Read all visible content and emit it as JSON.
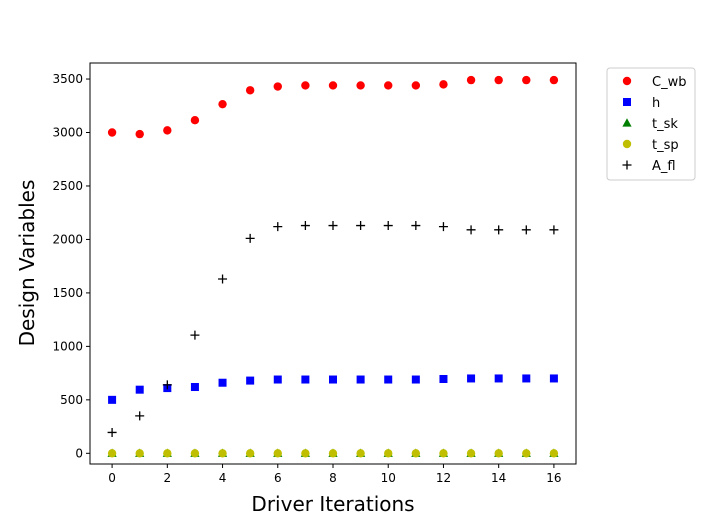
{
  "chart_data": {
    "type": "scatter",
    "title": "",
    "xlabel": "Driver Iterations",
    "ylabel": "Design Variables",
    "xlim": [
      -0.8,
      16.8
    ],
    "ylim": [
      -100,
      3650
    ],
    "xticks": [
      0,
      2,
      4,
      6,
      8,
      10,
      12,
      14,
      16
    ],
    "yticks": [
      0,
      500,
      1000,
      1500,
      2000,
      2500,
      3000,
      3500
    ],
    "grid": false,
    "legend_position": "outside-top-right",
    "x": [
      0,
      1,
      2,
      3,
      4,
      5,
      6,
      7,
      8,
      9,
      10,
      11,
      12,
      13,
      14,
      15,
      16
    ],
    "series": [
      {
        "name": "C_wb",
        "marker": "circle",
        "color": "#ff0000",
        "values": [
          3000,
          2985,
          3020,
          3115,
          3265,
          3395,
          3430,
          3440,
          3440,
          3440,
          3440,
          3440,
          3450,
          3490,
          3490,
          3490,
          3490
        ]
      },
      {
        "name": "h",
        "marker": "square",
        "color": "#0000ff",
        "values": [
          500,
          595,
          610,
          620,
          660,
          680,
          690,
          690,
          690,
          690,
          690,
          690,
          695,
          700,
          700,
          700,
          700
        ]
      },
      {
        "name": "t_sk",
        "marker": "triangle",
        "color": "#007f00",
        "values": [
          0,
          0,
          0,
          0,
          0,
          0,
          0,
          0,
          0,
          0,
          0,
          0,
          0,
          0,
          0,
          0,
          0
        ]
      },
      {
        "name": "t_sp",
        "marker": "circle",
        "color": "#bfbf00",
        "values": [
          0,
          0,
          0,
          0,
          0,
          0,
          0,
          0,
          0,
          0,
          0,
          0,
          0,
          0,
          0,
          0,
          0
        ]
      },
      {
        "name": "A_fl",
        "marker": "plus",
        "color": "#000000",
        "values": [
          195,
          350,
          640,
          1105,
          1630,
          2010,
          2120,
          2130,
          2130,
          2130,
          2130,
          2130,
          2120,
          2090,
          2090,
          2090,
          2090
        ]
      }
    ]
  }
}
